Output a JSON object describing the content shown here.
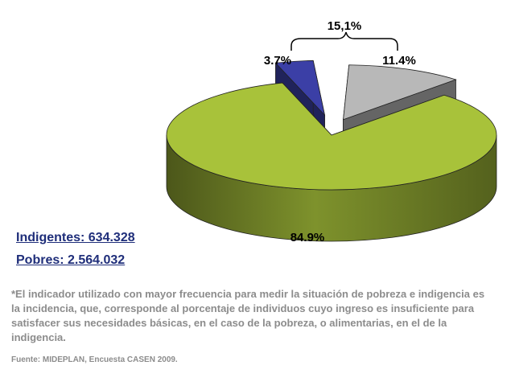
{
  "chart_data": {
    "type": "pie",
    "title": "",
    "slices": [
      {
        "label": "84.9%",
        "value": 84.9,
        "color": "#a8c23a"
      },
      {
        "label": "3.7%",
        "value": 3.7,
        "color": "#3b3fa6"
      },
      {
        "label": "11.4%",
        "value": 11.4,
        "color": "#b8b8b8"
      }
    ],
    "group_label": "15,1%",
    "exploded": true,
    "three_d": true
  },
  "stats": {
    "indigentes": "Indigentes: 634.328",
    "pobres": "Pobres: 2.564.032"
  },
  "footnote": "*El indicador utilizado con mayor frecuencia para medir la situación de pobreza e indigencia es la incidencia, que, corresponde al porcentaje de individuos cuyo ingreso es insuficiente para satisfacer sus necesidades básicas, en el caso de la pobreza, o alimentarias, en el de la indigencia.",
  "source": "Fuente: MIDEPLAN, Encuesta CASEN 2009."
}
